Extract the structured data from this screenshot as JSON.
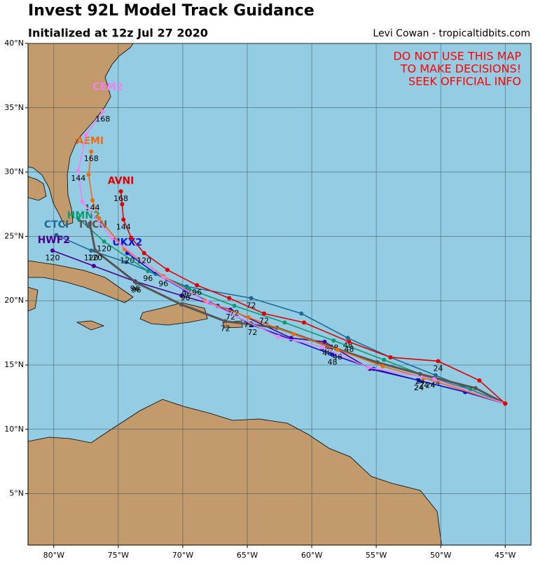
{
  "chart_data": {
    "type": "track-map",
    "title": "Invest 92L Model Track Guidance",
    "subtitle": "Initialized at 12z Jul 27 2020",
    "credit": "Levi Cowan - tropicaltidbits.com",
    "warning": [
      "DO NOT USE THIS MAP",
      "TO MAKE DECISIONS!",
      "SEEK OFFICIAL INFO"
    ],
    "xlim": [
      -82,
      -43
    ],
    "ylim": [
      1,
      40
    ],
    "xticks": [
      {
        "value": -80,
        "label": "80°W"
      },
      {
        "value": -75,
        "label": "75°W"
      },
      {
        "value": -70,
        "label": "70°W"
      },
      {
        "value": -65,
        "label": "65°W"
      },
      {
        "value": -60,
        "label": "60°W"
      },
      {
        "value": -55,
        "label": "55°W"
      },
      {
        "value": -50,
        "label": "50°W"
      },
      {
        "value": -45,
        "label": "45°W"
      }
    ],
    "yticks": [
      {
        "value": 5,
        "label": "5°N"
      },
      {
        "value": 10,
        "label": "10°N"
      },
      {
        "value": 15,
        "label": "15°N"
      },
      {
        "value": 20,
        "label": "20°N"
      },
      {
        "value": 25,
        "label": "25°N"
      },
      {
        "value": 30,
        "label": "30°N"
      },
      {
        "value": 35,
        "label": "35°N"
      },
      {
        "value": 40,
        "label": "40°N"
      }
    ],
    "grid": true,
    "series": [
      {
        "name": "CTCI",
        "color": "#1c6a98",
        "label_lon": -79.8,
        "label_lat": 25.9,
        "lon": [
          -45,
          -50.4,
          -53.9,
          -57.2,
          -60.8,
          -64.7,
          -69.7,
          -74.4,
          -77.1,
          -79.8
        ],
        "lat": [
          12,
          14.2,
          15.6,
          17.1,
          19.0,
          20.2,
          21.1,
          23.0,
          23.9,
          25.1
        ],
        "hours": [
          {
            "hour": 24,
            "lon": -50.4,
            "lat": 14.2
          },
          {
            "hour": 48,
            "lon": -57.2,
            "lat": 17.1
          },
          {
            "hour": 72,
            "lon": -64.7,
            "lat": 20.2
          },
          {
            "hour": 96,
            "lon": -69.7,
            "lat": 21.1
          },
          {
            "hour": 120,
            "lon": -77.1,
            "lat": 23.9
          }
        ]
      },
      {
        "name": "HWF2",
        "color": "#4b0090",
        "label_lon": -80.0,
        "label_lat": 24.7,
        "lon": [
          -45,
          -48.1,
          -51.7,
          -55.5,
          -59.0,
          -61.6,
          -66.3,
          -70.1,
          -73.7,
          -76.9,
          -80.1
        ],
        "lat": [
          12,
          12.9,
          13.8,
          14.7,
          16.8,
          17.1,
          19.3,
          20.4,
          21.5,
          22.7,
          23.9
        ],
        "hours": [
          {
            "hour": 24,
            "lon": -51.7,
            "lat": 13.8
          },
          {
            "hour": 48,
            "lon": -59.0,
            "lat": 16.8
          },
          {
            "hour": 72,
            "lon": -66.3,
            "lat": 19.3
          },
          {
            "hour": 96,
            "lon": -73.7,
            "lat": 21.5
          },
          {
            "hour": 120,
            "lon": -80.1,
            "lat": 23.9
          }
        ]
      },
      {
        "name": "UKX2",
        "color": "#1010e0",
        "label_lon": -74.3,
        "label_lat": 24.5,
        "lon": [
          -45,
          -48.1,
          -51.7,
          -55.2,
          -58.4,
          -61.6,
          -64.6,
          -67.3,
          -69.8,
          -72.1,
          -74.3
        ],
        "lat": [
          12,
          12.9,
          13.8,
          14.7,
          15.8,
          17.0,
          18.1,
          19.6,
          20.8,
          22.1,
          23.7
        ],
        "hours": [
          {
            "hour": 24,
            "lon": -51.7,
            "lat": 13.8
          },
          {
            "hour": 48,
            "lon": -58.4,
            "lat": 15.8
          },
          {
            "hour": 72,
            "lon": -64.6,
            "lat": 18.1
          },
          {
            "hour": 96,
            "lon": -69.8,
            "lat": 20.8
          },
          {
            "hour": 120,
            "lon": -74.3,
            "lat": 23.7
          }
        ]
      },
      {
        "name": "HMN2",
        "color": "#109a70",
        "label_lon": -77.7,
        "label_lat": 26.6,
        "lon": [
          -45,
          -47.7,
          -50.8,
          -54.4,
          -58.3,
          -62.1,
          -66.0,
          -69.5,
          -72.7,
          -76.1,
          -78.1
        ],
        "lat": [
          12,
          13.1,
          14.0,
          15.4,
          16.9,
          18.3,
          19.6,
          20.9,
          22.3,
          24.6,
          26.4
        ],
        "hours": [
          {
            "hour": 24,
            "lon": -50.8,
            "lat": 14.0
          },
          {
            "hour": 48,
            "lon": -58.3,
            "lat": 16.9
          },
          {
            "hour": 72,
            "lon": -66.0,
            "lat": 19.6
          },
          {
            "hour": 96,
            "lon": -72.7,
            "lat": 22.3
          },
          {
            "hour": 120,
            "lon": -76.1,
            "lat": 24.6
          }
        ]
      },
      {
        "name": "TVCN",
        "color": "#555555",
        "label_lon": -77.0,
        "label_lat": 25.9,
        "lon": [
          -45,
          -47.3,
          -51.6,
          -54.9,
          -58.8,
          -62.7,
          -66.7,
          -70.1,
          -73.6,
          -76.8,
          -77.2
        ],
        "lat": [
          12,
          13.2,
          14.3,
          15.2,
          16.5,
          17.9,
          18.4,
          19.7,
          21.4,
          23.9,
          26.0
        ],
        "hours": [
          {
            "hour": 24,
            "lon": -51.6,
            "lat": 14.3
          },
          {
            "hour": 48,
            "lon": -58.8,
            "lat": 16.5
          },
          {
            "hour": 72,
            "lon": -66.7,
            "lat": 18.4
          },
          {
            "hour": 96,
            "lon": -73.6,
            "lat": 21.4
          },
          {
            "hour": 120,
            "lon": -76.8,
            "lat": 23.9
          }
        ]
      },
      {
        "name": "AEMI",
        "color": "#f06a10",
        "label_lon": -77.2,
        "label_lat": 32.4,
        "lon": [
          -45,
          -51.3,
          -54.5,
          -58.0,
          -61.4,
          -64.9,
          -68.3,
          -71.5,
          -74.5,
          -76.5,
          -77.0,
          -77.3,
          -77.1
        ],
        "lat": [
          12,
          14.0,
          14.9,
          16.2,
          17.4,
          18.7,
          20.0,
          21.9,
          24.0,
          26.4,
          27.8,
          29.8,
          31.6
        ],
        "hours": [
          {
            "hour": 24,
            "lon": -51.3,
            "lat": 14.0
          },
          {
            "hour": 48,
            "lon": -58.0,
            "lat": 16.2
          },
          {
            "hour": 72,
            "lon": -64.9,
            "lat": 18.7
          },
          {
            "hour": 96,
            "lon": -71.5,
            "lat": 21.9
          },
          {
            "hour": 144,
            "lon": -77.0,
            "lat": 27.8
          },
          {
            "hour": 168,
            "lon": -77.1,
            "lat": 31.6
          }
        ]
      },
      {
        "name": "CEM2",
        "color": "#ee82ee",
        "label_lon": -75.8,
        "label_lat": 36.6,
        "lon": [
          -45,
          -50.5,
          -55.6,
          -59.2,
          -62.6,
          -68.1,
          -71.5,
          -75.5,
          -77.8,
          -78.1,
          -77.5,
          -76.2
        ],
        "lat": [
          12,
          13.9,
          14.8,
          16.4,
          17.2,
          19.9,
          21.8,
          24.9,
          27.7,
          30.1,
          32.9,
          34.7
        ],
        "hours": [
          {
            "hour": 144,
            "lon": -78.1,
            "lat": 30.1
          },
          {
            "hour": 168,
            "lon": -76.2,
            "lat": 34.7
          }
        ]
      },
      {
        "name": "AVNI",
        "color": "#e00000",
        "label_lon": -74.8,
        "label_lat": 29.3,
        "lon": [
          -45,
          -47.0,
          -50.2,
          -53.9,
          -57.1,
          -60.6,
          -63.7,
          -66.4,
          -68.9,
          -71.2,
          -73.0,
          -74.0,
          -74.6,
          -74.7,
          -74.8
        ],
        "lat": [
          12,
          13.8,
          15.3,
          15.6,
          16.8,
          18.3,
          19.0,
          20.2,
          21.2,
          22.4,
          23.7,
          24.9,
          26.3,
          27.5,
          28.5
        ],
        "hours": [
          {
            "hour": 24,
            "lon": -50.2,
            "lat": 15.3
          },
          {
            "hour": 48,
            "lon": -57.1,
            "lat": 16.8
          },
          {
            "hour": 72,
            "lon": -63.7,
            "lat": 19.0
          },
          {
            "hour": 96,
            "lon": -68.9,
            "lat": 21.2
          },
          {
            "hour": 120,
            "lon": -73.0,
            "lat": 23.7
          },
          {
            "hour": 144,
            "lon": -74.6,
            "lat": 26.3
          },
          {
            "hour": 168,
            "lon": -74.8,
            "lat": 28.5
          }
        ]
      }
    ]
  }
}
